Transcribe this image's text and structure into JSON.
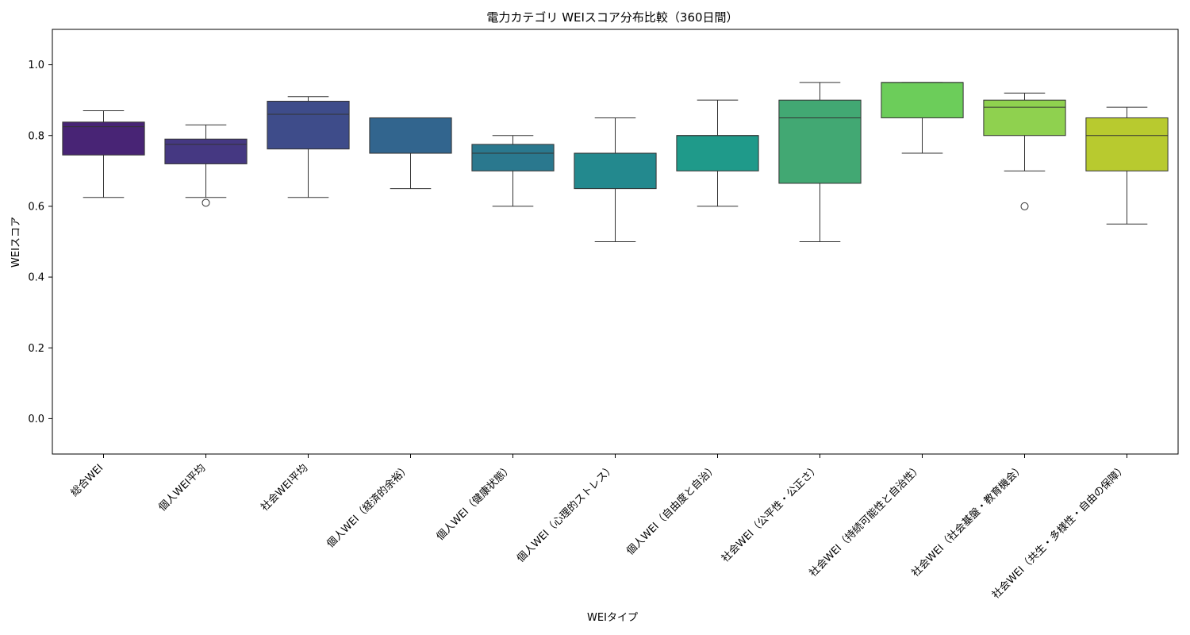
{
  "chart_data": {
    "type": "box",
    "title": "電力カテゴリ WEIスコア分布比較（360日間）",
    "xlabel": "WEIタイプ",
    "ylabel": "WEIスコア",
    "ylim": [
      -0.1,
      1.1
    ],
    "yticks": [
      "0.0",
      "0.2",
      "0.4",
      "0.6",
      "0.8",
      "1.0"
    ],
    "grid": false,
    "categories": [
      "総合WEI",
      "個人WEI平均",
      "社会WEI平均",
      "個人WEI（経済的余裕）",
      "個人WEI（健康状態）",
      "個人WEI（心理的ストレス）",
      "個人WEI（自由度と自治）",
      "社会WEI（公平性・公正さ）",
      "社会WEI（持続可能性と自治性）",
      "社会WEI（社会基盤・教育機会）",
      "社会WEI（共生・多様性・自由の保障）"
    ],
    "boxes": [
      {
        "whisker_low": 0.625,
        "q1": 0.745,
        "median": 0.825,
        "q3": 0.838,
        "whisker_high": 0.87,
        "outliers": [],
        "color": "#482475"
      },
      {
        "whisker_low": 0.625,
        "q1": 0.72,
        "median": 0.775,
        "q3": 0.79,
        "whisker_high": 0.83,
        "outliers": [
          0.61
        ],
        "color": "#453882"
      },
      {
        "whisker_low": 0.625,
        "q1": 0.762,
        "median": 0.86,
        "q3": 0.897,
        "whisker_high": 0.91,
        "outliers": [],
        "color": "#3e4c8a"
      },
      {
        "whisker_low": 0.65,
        "q1": 0.75,
        "median": 0.85,
        "q3": 0.85,
        "whisker_high": 0.85,
        "outliers": [],
        "color": "#32658e"
      },
      {
        "whisker_low": 0.6,
        "q1": 0.7,
        "median": 0.75,
        "q3": 0.775,
        "whisker_high": 0.8,
        "outliers": [],
        "color": "#2a788e"
      },
      {
        "whisker_low": 0.5,
        "q1": 0.65,
        "median": 0.75,
        "q3": 0.75,
        "whisker_high": 0.85,
        "outliers": [],
        "color": "#23898e"
      },
      {
        "whisker_low": 0.6,
        "q1": 0.7,
        "median": 0.8,
        "q3": 0.8,
        "whisker_high": 0.9,
        "outliers": [],
        "color": "#1f9a8a"
      },
      {
        "whisker_low": 0.5,
        "q1": 0.665,
        "median": 0.85,
        "q3": 0.9,
        "whisker_high": 0.95,
        "outliers": [],
        "color": "#42a873"
      },
      {
        "whisker_low": 0.75,
        "q1": 0.85,
        "median": 0.95,
        "q3": 0.95,
        "whisker_high": 0.95,
        "outliers": [],
        "color": "#6ccd5a"
      },
      {
        "whisker_low": 0.7,
        "q1": 0.8,
        "median": 0.88,
        "q3": 0.9,
        "whisker_high": 0.92,
        "outliers": [
          0.6
        ],
        "color": "#8fd14f"
      },
      {
        "whisker_low": 0.55,
        "q1": 0.7,
        "median": 0.8,
        "q3": 0.85,
        "whisker_high": 0.88,
        "outliers": [],
        "color": "#b8ca2f"
      }
    ]
  }
}
